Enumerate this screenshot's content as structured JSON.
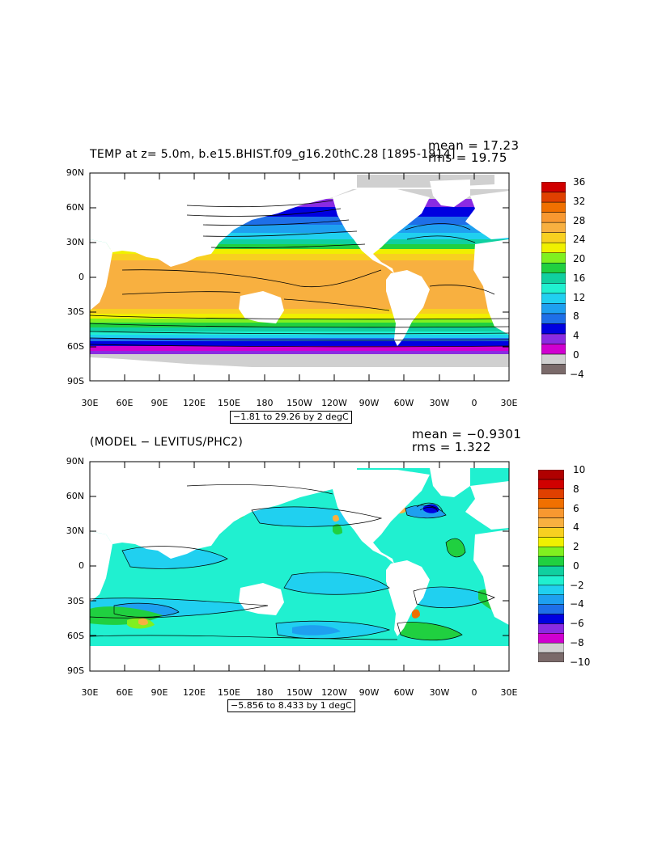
{
  "top": {
    "title": "TEMP at z=    5.0m, b.e15.BHIST.f09_g16.20thC.28 [1895-1914]",
    "mean_text": "mean = 17.23",
    "rms_text": "rms = 19.75",
    "range_text": "−1.81 to 29.26 by 2 degC",
    "lat_labels": [
      "90N",
      "60N",
      "30N",
      "0",
      "30S",
      "60S",
      "90S"
    ],
    "lon_labels": [
      "30E",
      "60E",
      "90E",
      "120E",
      "150E",
      "180",
      "150W",
      "120W",
      "90W",
      "60W",
      "30W",
      "0",
      "30E"
    ],
    "colorbar": {
      "labels": [
        "36",
        "32",
        "28",
        "24",
        "20",
        "16",
        "12",
        "8",
        "4",
        "0",
        "−4"
      ],
      "colors": [
        "#7a6a6a",
        "#d0d0d0",
        "#d000d0",
        "#8a2be2",
        "#0000e0",
        "#1e6fe8",
        "#1ea0f0",
        "#20d0f0",
        "#20f0d0",
        "#10d0a0",
        "#20d040",
        "#80f020",
        "#f0f000",
        "#f8d020",
        "#f8b040",
        "#f89830",
        "#f07000",
        "#e04000",
        "#d00000"
      ]
    }
  },
  "bottom": {
    "title": "(MODEL − LEVITUS/PHC2)",
    "mean_text": "mean = −0.9301",
    "rms_text": "rms = 1.322",
    "range_text": "−5.856 to 8.433 by 1 degC",
    "lat_labels": [
      "90N",
      "60N",
      "30N",
      "0",
      "30S",
      "60S",
      "90S"
    ],
    "lon_labels": [
      "30E",
      "60E",
      "90E",
      "120E",
      "150E",
      "180",
      "150W",
      "120W",
      "90W",
      "60W",
      "30W",
      "0",
      "30E"
    ],
    "colorbar": {
      "labels": [
        "10",
        "8",
        "6",
        "4",
        "2",
        "0",
        "−2",
        "−4",
        "−6",
        "−8",
        "−10"
      ],
      "colors": [
        "#7a6a6a",
        "#d0d0d0",
        "#d000d0",
        "#8a2be2",
        "#0000e0",
        "#1e6fe8",
        "#1ea0f0",
        "#20d0f0",
        "#20f0d0",
        "#10d0a0",
        "#20d040",
        "#80f020",
        "#f0f000",
        "#f8d020",
        "#f8b040",
        "#f89830",
        "#f07000",
        "#e04000",
        "#d00000",
        "#b00000"
      ]
    }
  }
}
